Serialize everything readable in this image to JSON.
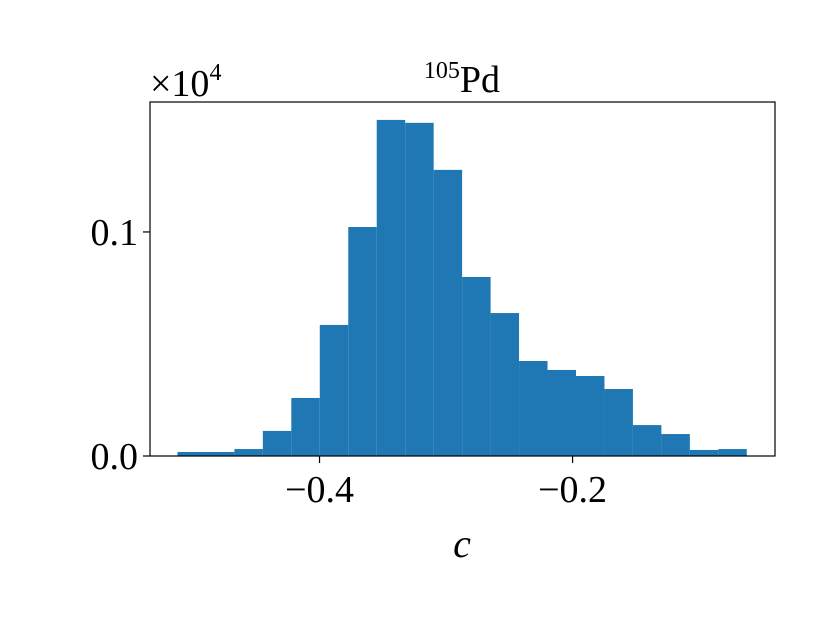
{
  "chart_data": {
    "type": "histogram",
    "title": {
      "superscript": "105",
      "text": "Pd"
    },
    "y_offset_label": {
      "base": "×10",
      "exponent": "4"
    },
    "x_label": "c",
    "bins": [
      -0.5123,
      -0.4898,
      -0.4673,
      -0.4448,
      -0.4223,
      -0.3998,
      -0.3773,
      -0.3548,
      -0.3323,
      -0.3098,
      -0.2873,
      -0.2648,
      -0.2423,
      -0.2198,
      -0.1973,
      -0.1748,
      -0.1523,
      -0.1298,
      -0.1073,
      -0.0848,
      -0.0623
    ],
    "values": [
      0.0018,
      0.0018,
      0.0031,
      0.0112,
      0.0259,
      0.0585,
      0.1022,
      0.15,
      0.1487,
      0.1277,
      0.0799,
      0.0638,
      0.0424,
      0.0384,
      0.0357,
      0.0299,
      0.0138,
      0.0098,
      0.0027,
      0.0031
    ],
    "color": "#1f77b4",
    "xlim": [
      -0.534,
      -0.04
    ],
    "ylim": [
      0,
      0.158
    ],
    "xticks": [
      {
        "value": -0.4,
        "label": "−0.4"
      },
      {
        "value": -0.2,
        "label": "−0.2"
      }
    ],
    "yticks": [
      {
        "value": 0,
        "label": "0.0"
      },
      0.1
    ]
  }
}
